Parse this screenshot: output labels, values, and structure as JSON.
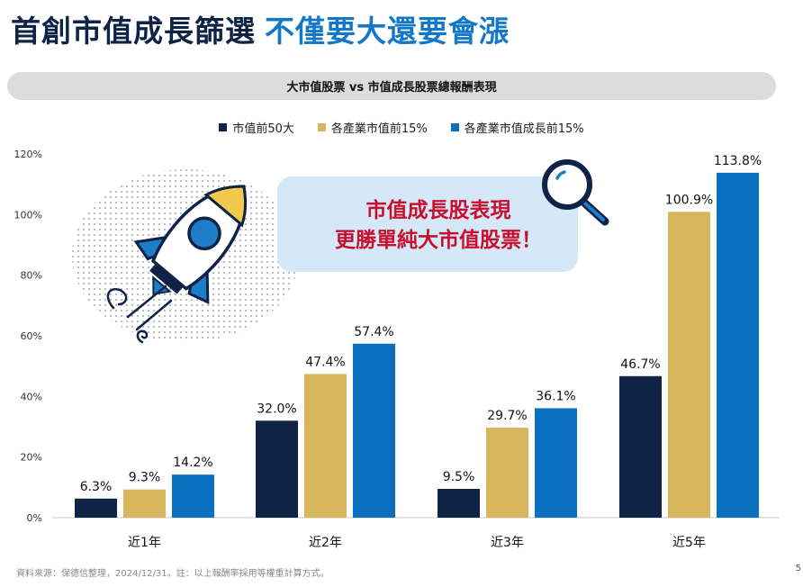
{
  "header": {
    "title_part1": "首創市值成長篩選",
    "title_part2": "不僅要大還要會漲"
  },
  "subtitle": "大市值股票 vs 市值成長股票總報酬表現",
  "callout": {
    "line1": "市值成長股表現",
    "line2": "更勝單純大市值股票！"
  },
  "footer": {
    "source": "資料來源：保德信整理，2024/12/31。註：以上報酬率採用等權重計算方式。",
    "page_number": "5"
  },
  "colors": {
    "title_dark": "#0f2346",
    "title_accent": "#1478c8",
    "callout_text": "#c8102e",
    "callout_bg": "#d5e8f7"
  },
  "icons": [
    "rocket-icon",
    "magnifier-icon"
  ],
  "chart_data": {
    "type": "bar",
    "categories": [
      "近1年",
      "近2年",
      "近3年",
      "近5年"
    ],
    "series": [
      {
        "name": "市值前50大",
        "color": "#0f2346",
        "values": [
          6.3,
          32.0,
          9.5,
          46.7
        ]
      },
      {
        "name": "各產業市值前15%",
        "color": "#d8b65e",
        "values": [
          9.3,
          47.4,
          29.7,
          100.9
        ]
      },
      {
        "name": "各產業市值成長前15%",
        "color": "#0a6fbf",
        "values": [
          14.2,
          57.4,
          36.1,
          113.8
        ]
      }
    ],
    "data_labels": [
      [
        "6.3%",
        "32.0%",
        "9.5%",
        "46.7%"
      ],
      [
        "9.3%",
        "47.4%",
        "29.7%",
        "100.9%"
      ],
      [
        "14.2%",
        "57.4%",
        "36.1%",
        "113.8%"
      ]
    ],
    "y_ticks": [
      "0%",
      "20%",
      "40%",
      "60%",
      "80%",
      "100%",
      "120%"
    ],
    "ylim": [
      0,
      120
    ],
    "grid": false,
    "legend_position": "top-center"
  }
}
